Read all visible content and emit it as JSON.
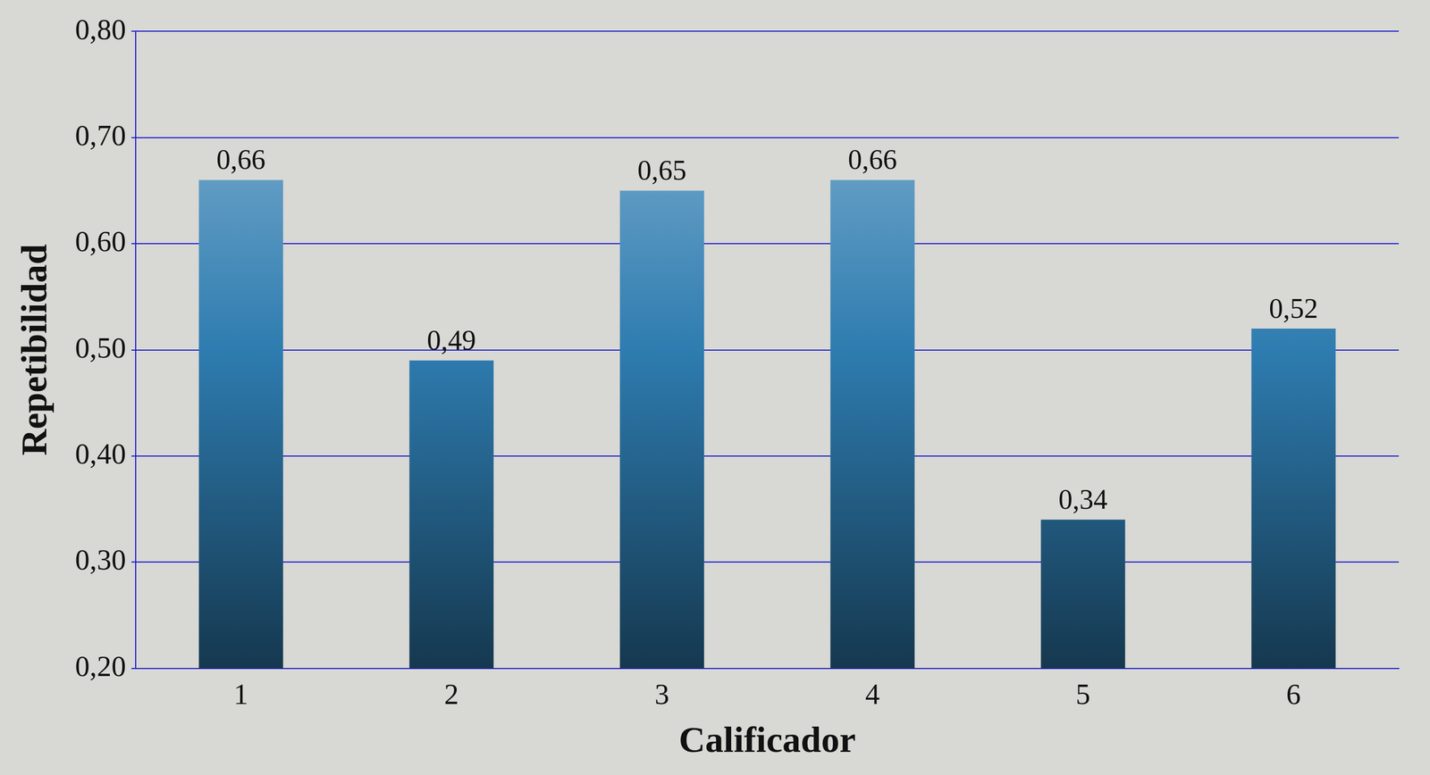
{
  "chart_data": {
    "type": "bar",
    "x_label": "Calificador",
    "y_label": "Repetibilidad",
    "categories": [
      "1",
      "2",
      "3",
      "4",
      "5",
      "6"
    ],
    "values": [
      0.66,
      0.49,
      0.65,
      0.66,
      0.34,
      0.52
    ],
    "value_labels": [
      "0,66",
      "0,49",
      "0,65",
      "0,66",
      "0,34",
      "0,52"
    ],
    "color": "#2e7cb0",
    "ylim": [
      0.2,
      0.8
    ],
    "yticks": [
      {
        "value": 0.2,
        "label": "0,20"
      },
      {
        "value": 0.3,
        "label": "0,30"
      },
      {
        "value": 0.4,
        "label": "0,40"
      },
      {
        "value": 0.5,
        "label": "0,50"
      },
      {
        "value": 0.6,
        "label": "0,60"
      },
      {
        "value": 0.7,
        "label": "0,70"
      },
      {
        "value": 0.8,
        "label": "0,80"
      }
    ],
    "grid": true,
    "data_labels": true
  }
}
